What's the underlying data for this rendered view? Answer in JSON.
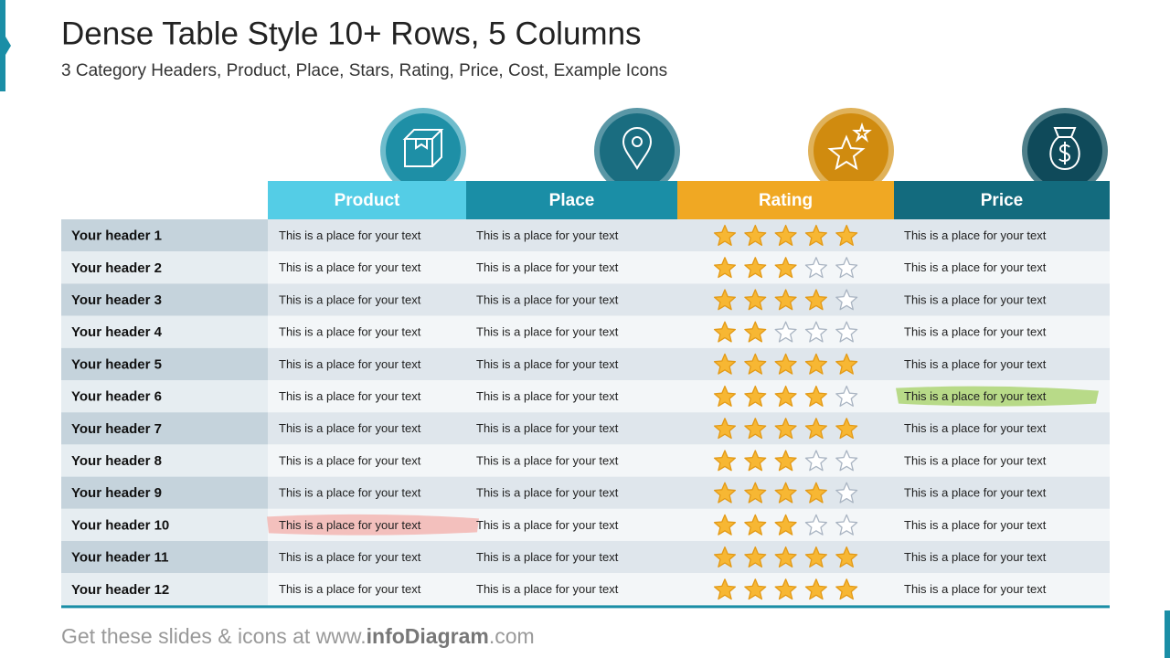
{
  "header": {
    "title": "Dense Table Style  10+ Rows, 5 Columns",
    "subtitle": "3 Category Headers, Product, Place, Stars, Rating, Price, Cost, Example Icons"
  },
  "table": {
    "columns": [
      "Product",
      "Place",
      "Rating",
      "Price"
    ],
    "rows": [
      {
        "header": "Your header 1",
        "product": "This is a place for your text",
        "place": "This is a place for your text",
        "rating": 5,
        "price": "This is a place for your text"
      },
      {
        "header": "Your header 2",
        "product": "This is a place for your text",
        "place": "This is a place for your text",
        "rating": 3,
        "price": "This is a place for your text"
      },
      {
        "header": "Your header 3",
        "product": "This is a place for your text",
        "place": "This is a place for your text",
        "rating": 4,
        "price": "This is a place for your text"
      },
      {
        "header": "Your header 4",
        "product": "This is a place for your text",
        "place": "This is a place for your text",
        "rating": 2,
        "price": "This is a place for your text"
      },
      {
        "header": "Your header 5",
        "product": "This is a place for your text",
        "place": "This is a place for your text",
        "rating": 5,
        "price": "This is a place for your text"
      },
      {
        "header": "Your header 6",
        "product": "This is a place for your text",
        "place": "This is a place for your text",
        "rating": 4,
        "price": "This is a place for your text"
      },
      {
        "header": "Your header 7",
        "product": "This is a place for your text",
        "place": "This is a place for your text",
        "rating": 5,
        "price": "This is a place for your text"
      },
      {
        "header": "Your header 8",
        "product": "This is a place for your text",
        "place": "This is a place for your text",
        "rating": 3,
        "price": "This is a place for your text"
      },
      {
        "header": "Your header 9",
        "product": "This is a place for your text",
        "place": "This is a place for your text",
        "rating": 4,
        "price": "This is a place for your text"
      },
      {
        "header": "Your header 10",
        "product": "This is a place for your text",
        "place": "This is a place for your text",
        "rating": 3,
        "price": "This is a place for your text"
      },
      {
        "header": "Your header 11",
        "product": "This is a place for your text",
        "place": "This is a place for your text",
        "rating": 5,
        "price": "This is a place for your text"
      },
      {
        "header": "Your header 12",
        "product": "This is a place for your text",
        "place": "This is a place for your text",
        "rating": 5,
        "price": "This is a place for your text"
      }
    ]
  },
  "footer": {
    "prefix": "Get these slides & icons at www.",
    "brand": "infoDiagram",
    "suffix": ".com"
  }
}
